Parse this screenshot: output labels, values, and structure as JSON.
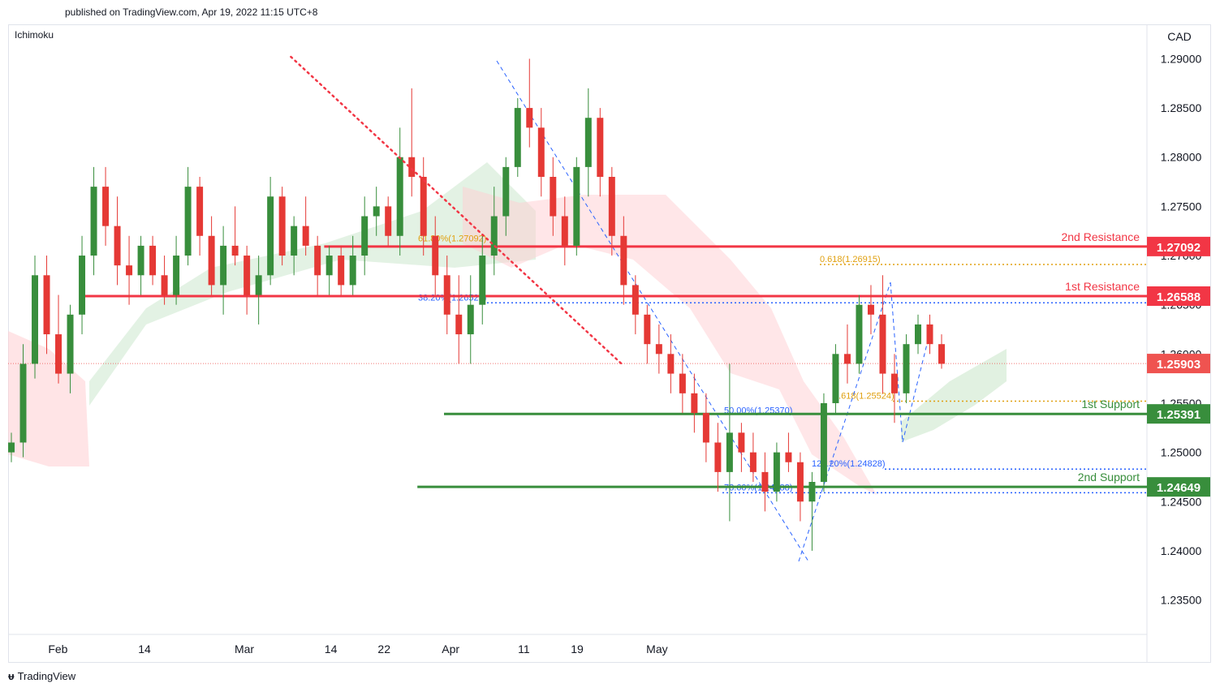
{
  "header": {
    "published": "published on TradingView.com, Apr 19, 2022 11:15 UTC+8"
  },
  "indicator": "Ichimoku",
  "footer": {
    "brand": "TradingView"
  },
  "colors": {
    "bull": "#388e3c",
    "bear": "#e53935",
    "resistance": "#f23645",
    "support": "#388e3c",
    "fib_blue": "#2962ff",
    "fib_gold": "#e0a010",
    "cloud_green": "#c8e6c9",
    "cloud_red": "#ffcdd2",
    "current": "#ef5350"
  },
  "chart_data": {
    "type": "candlestick",
    "symbol_currency": "CAD",
    "ylim": [
      1.2315,
      1.2935
    ],
    "x_ticks": [
      "Feb",
      "14",
      "Mar",
      "14",
      "22",
      "Apr",
      "11",
      "19",
      "May"
    ],
    "y_ticks": [
      "1.29000",
      "1.28500",
      "1.28000",
      "1.27500",
      "1.27000",
      "1.26500",
      "1.26000",
      "1.25500",
      "1.25000",
      "1.24500",
      "1.24000",
      "1.23500"
    ],
    "current_price": 1.25903,
    "levels": [
      {
        "label": "2nd Resistance",
        "price": 1.27092,
        "price_label": "1.27092",
        "kind": "resistance",
        "from": "Mar 13"
      },
      {
        "label": "1st Resistance",
        "price": 1.26588,
        "price_label": "1.26588",
        "kind": "resistance",
        "from": "Feb 5"
      },
      {
        "label": "1st Support",
        "price": 1.25391,
        "price_label": "1.25391",
        "kind": "support",
        "from": "Mar 31"
      },
      {
        "label": "2nd Support",
        "price": 1.24649,
        "price_label": "1.24649",
        "kind": "support",
        "from": "Mar 27"
      }
    ],
    "fib_labels": [
      {
        "text": "61.80%(1.27092)",
        "price": 1.2712,
        "color": "gold"
      },
      {
        "text": "0.618(1.26915)",
        "price": 1.2691,
        "color": "gold"
      },
      {
        "text": "38.20%(1.26523)",
        "price": 1.2652,
        "color": "blue"
      },
      {
        "text": "0.618(1.25524)",
        "price": 1.2552,
        "color": "gold"
      },
      {
        "text": "50.00%(1.25370)",
        "price": 1.2537,
        "color": "blue"
      },
      {
        "text": "127.20%(1.24828)",
        "price": 1.2483,
        "color": "blue"
      },
      {
        "text": "78.60%(1.24588)",
        "price": 1.2459,
        "color": "blue"
      }
    ],
    "trendline": {
      "from": {
        "date": "Mar 8",
        "price": 1.2902
      },
      "to": {
        "date": "Apr 27",
        "price": 1.2588
      }
    },
    "ohlc": [
      [
        1.25,
        1.252,
        1.249,
        1.251
      ],
      [
        1.251,
        1.261,
        1.2495,
        1.259
      ],
      [
        1.259,
        1.27,
        1.2575,
        1.268
      ],
      [
        1.268,
        1.27,
        1.26,
        1.262
      ],
      [
        1.262,
        1.266,
        1.257,
        1.258
      ],
      [
        1.258,
        1.265,
        1.256,
        1.264
      ],
      [
        1.264,
        1.272,
        1.262,
        1.27
      ],
      [
        1.27,
        1.279,
        1.268,
        1.277
      ],
      [
        1.277,
        1.279,
        1.271,
        1.273
      ],
      [
        1.273,
        1.276,
        1.267,
        1.269
      ],
      [
        1.269,
        1.272,
        1.265,
        1.268
      ],
      [
        1.268,
        1.272,
        1.266,
        1.271
      ],
      [
        1.271,
        1.272,
        1.267,
        1.268
      ],
      [
        1.268,
        1.27,
        1.265,
        1.266
      ],
      [
        1.266,
        1.272,
        1.265,
        1.27
      ],
      [
        1.27,
        1.279,
        1.269,
        1.277
      ],
      [
        1.277,
        1.278,
        1.27,
        1.272
      ],
      [
        1.272,
        1.274,
        1.266,
        1.267
      ],
      [
        1.267,
        1.273,
        1.264,
        1.271
      ],
      [
        1.271,
        1.275,
        1.269,
        1.27
      ],
      [
        1.27,
        1.271,
        1.264,
        1.266
      ],
      [
        1.266,
        1.27,
        1.263,
        1.268
      ],
      [
        1.268,
        1.278,
        1.267,
        1.276
      ],
      [
        1.276,
        1.277,
        1.269,
        1.27
      ],
      [
        1.27,
        1.274,
        1.268,
        1.273
      ],
      [
        1.273,
        1.276,
        1.27,
        1.271
      ],
      [
        1.271,
        1.272,
        1.266,
        1.268
      ],
      [
        1.268,
        1.271,
        1.266,
        1.27
      ],
      [
        1.27,
        1.271,
        1.266,
        1.267
      ],
      [
        1.267,
        1.272,
        1.266,
        1.27
      ],
      [
        1.27,
        1.276,
        1.268,
        1.274
      ],
      [
        1.274,
        1.277,
        1.272,
        1.275
      ],
      [
        1.275,
        1.276,
        1.271,
        1.272
      ],
      [
        1.272,
        1.283,
        1.27,
        1.28
      ],
      [
        1.28,
        1.287,
        1.276,
        1.278
      ],
      [
        1.278,
        1.28,
        1.27,
        1.272
      ],
      [
        1.272,
        1.274,
        1.266,
        1.268
      ],
      [
        1.268,
        1.27,
        1.262,
        1.264
      ],
      [
        1.264,
        1.268,
        1.259,
        1.262
      ],
      [
        1.262,
        1.268,
        1.259,
        1.265
      ],
      [
        1.265,
        1.272,
        1.263,
        1.27
      ],
      [
        1.27,
        1.277,
        1.268,
        1.274
      ],
      [
        1.274,
        1.28,
        1.272,
        1.279
      ],
      [
        1.279,
        1.286,
        1.278,
        1.285
      ],
      [
        1.285,
        1.29,
        1.281,
        1.283
      ],
      [
        1.283,
        1.285,
        1.276,
        1.278
      ],
      [
        1.278,
        1.28,
        1.272,
        1.274
      ],
      [
        1.274,
        1.276,
        1.269,
        1.271
      ],
      [
        1.271,
        1.28,
        1.27,
        1.279
      ],
      [
        1.279,
        1.287,
        1.276,
        1.284
      ],
      [
        1.284,
        1.285,
        1.276,
        1.278
      ],
      [
        1.278,
        1.279,
        1.27,
        1.272
      ],
      [
        1.272,
        1.274,
        1.265,
        1.267
      ],
      [
        1.267,
        1.268,
        1.262,
        1.264
      ],
      [
        1.264,
        1.265,
        1.259,
        1.261
      ],
      [
        1.261,
        1.263,
        1.258,
        1.26
      ],
      [
        1.26,
        1.262,
        1.256,
        1.258
      ],
      [
        1.258,
        1.26,
        1.254,
        1.256
      ],
      [
        1.256,
        1.258,
        1.252,
        1.254
      ],
      [
        1.254,
        1.256,
        1.249,
        1.251
      ],
      [
        1.251,
        1.253,
        1.246,
        1.248
      ],
      [
        1.248,
        1.259,
        1.243,
        1.252
      ],
      [
        1.252,
        1.253,
        1.248,
        1.25
      ],
      [
        1.25,
        1.252,
        1.247,
        1.248
      ],
      [
        1.248,
        1.25,
        1.244,
        1.246
      ],
      [
        1.246,
        1.251,
        1.245,
        1.25
      ],
      [
        1.25,
        1.252,
        1.248,
        1.249
      ],
      [
        1.249,
        1.25,
        1.243,
        1.245
      ],
      [
        1.245,
        1.248,
        1.24,
        1.247
      ],
      [
        1.247,
        1.256,
        1.246,
        1.255
      ],
      [
        1.255,
        1.261,
        1.254,
        1.26
      ],
      [
        1.26,
        1.263,
        1.257,
        1.259
      ],
      [
        1.259,
        1.266,
        1.258,
        1.265
      ],
      [
        1.265,
        1.267,
        1.262,
        1.264
      ],
      [
        1.264,
        1.268,
        1.256,
        1.258
      ],
      [
        1.258,
        1.26,
        1.253,
        1.256
      ],
      [
        1.256,
        1.262,
        1.255,
        1.261
      ],
      [
        1.261,
        1.264,
        1.26,
        1.263
      ],
      [
        1.263,
        1.264,
        1.26,
        1.261
      ],
      [
        1.261,
        1.262,
        1.2585,
        1.259
      ]
    ],
    "grid": false,
    "legend": "none"
  }
}
